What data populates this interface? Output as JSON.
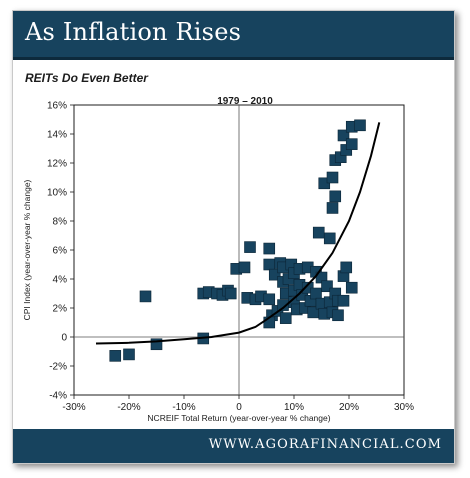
{
  "header": {
    "title": "As Inflation Rises"
  },
  "subtitle": "REITs Do Even Better",
  "footer": {
    "url": "WWW.AGORAFINANCIAL.COM"
  },
  "colors": {
    "header_bg": "#17435e",
    "marker": "#17435e",
    "curve": "#000000"
  },
  "chart_data": {
    "type": "scatter",
    "title": "1979 – 2010",
    "xlabel": "NCREIF Total Return (year-over-year % change)",
    "ylabel": "CPI Index (year-over-year % change)",
    "xlim": [
      -30,
      30
    ],
    "ylim": [
      -4,
      16
    ],
    "xticks": [
      -30,
      -20,
      -10,
      0,
      10,
      20,
      30
    ],
    "xtick_labels": [
      "-30%",
      "-20%",
      "-10%",
      "0",
      "10%",
      "20%",
      "30%"
    ],
    "yticks": [
      -4,
      -2,
      0,
      2,
      4,
      6,
      8,
      10,
      12,
      14,
      16
    ],
    "ytick_labels": [
      "-4%",
      "-2%",
      "0",
      "2%",
      "4%",
      "6%",
      "8%",
      "10%",
      "12%",
      "14%",
      "16%"
    ],
    "grid": false,
    "points": [
      {
        "x": -22.5,
        "y": -1.3
      },
      {
        "x": -20,
        "y": -1.2
      },
      {
        "x": -15,
        "y": -0.5
      },
      {
        "x": -17,
        "y": 2.8
      },
      {
        "x": -6.5,
        "y": -0.1
      },
      {
        "x": -6.5,
        "y": 3.0
      },
      {
        "x": -5.5,
        "y": 3.1
      },
      {
        "x": -4,
        "y": 3.0
      },
      {
        "x": -3,
        "y": 2.9
      },
      {
        "x": -2,
        "y": 3.2
      },
      {
        "x": -1.5,
        "y": 3.0
      },
      {
        "x": -0.5,
        "y": 4.7
      },
      {
        "x": 1,
        "y": 4.8
      },
      {
        "x": 2,
        "y": 6.2
      },
      {
        "x": 1.5,
        "y": 2.7
      },
      {
        "x": 3,
        "y": 2.6
      },
      {
        "x": 4,
        "y": 2.8
      },
      {
        "x": 5.5,
        "y": 6.1
      },
      {
        "x": 5.5,
        "y": 5.0
      },
      {
        "x": 6.5,
        "y": 4.3
      },
      {
        "x": 5.5,
        "y": 2.6
      },
      {
        "x": 6,
        "y": 1.5
      },
      {
        "x": 5.5,
        "y": 1.0
      },
      {
        "x": 7,
        "y": 1.8
      },
      {
        "x": 7.5,
        "y": 5.1
      },
      {
        "x": 8,
        "y": 4.8
      },
      {
        "x": 8,
        "y": 3.8
      },
      {
        "x": 8.5,
        "y": 3.0
      },
      {
        "x": 8,
        "y": 2.2
      },
      {
        "x": 8.5,
        "y": 1.3
      },
      {
        "x": 9,
        "y": 4.0
      },
      {
        "x": 9.5,
        "y": 5.0
      },
      {
        "x": 10,
        "y": 4.4
      },
      {
        "x": 10,
        "y": 3.2
      },
      {
        "x": 10,
        "y": 2.4
      },
      {
        "x": 10.5,
        "y": 1.9
      },
      {
        "x": 11,
        "y": 4.7
      },
      {
        "x": 11,
        "y": 3.6
      },
      {
        "x": 11.5,
        "y": 2.9
      },
      {
        "x": 12,
        "y": 2.0
      },
      {
        "x": 12.5,
        "y": 4.8
      },
      {
        "x": 12.5,
        "y": 3.4
      },
      {
        "x": 13,
        "y": 2.5
      },
      {
        "x": 13.5,
        "y": 1.7
      },
      {
        "x": 14,
        "y": 4.5
      },
      {
        "x": 14,
        "y": 3.0
      },
      {
        "x": 14.5,
        "y": 7.2
      },
      {
        "x": 15,
        "y": 4.1
      },
      {
        "x": 15,
        "y": 2.3
      },
      {
        "x": 15.5,
        "y": 1.6
      },
      {
        "x": 15.5,
        "y": 10.6
      },
      {
        "x": 16,
        "y": 3.5
      },
      {
        "x": 16.5,
        "y": 2.4
      },
      {
        "x": 16.5,
        "y": 6.8
      },
      {
        "x": 17,
        "y": 1.7
      },
      {
        "x": 17,
        "y": 11.0
      },
      {
        "x": 17,
        "y": 8.9
      },
      {
        "x": 17.5,
        "y": 9.7
      },
      {
        "x": 17.5,
        "y": 3.0
      },
      {
        "x": 17.5,
        "y": 12.2
      },
      {
        "x": 18,
        "y": 2.5
      },
      {
        "x": 18,
        "y": 1.5
      },
      {
        "x": 18.5,
        "y": 12.4
      },
      {
        "x": 19,
        "y": 4.2
      },
      {
        "x": 19,
        "y": 13.9
      },
      {
        "x": 19,
        "y": 2.5
      },
      {
        "x": 19.5,
        "y": 12.9
      },
      {
        "x": 19.5,
        "y": 4.8
      },
      {
        "x": 20.5,
        "y": 3.4
      },
      {
        "x": 20.5,
        "y": 14.5
      },
      {
        "x": 20.5,
        "y": 13.3
      },
      {
        "x": 22,
        "y": 14.6
      }
    ],
    "trend": {
      "x": [
        -26,
        -20,
        -15,
        -10,
        -5,
        0,
        3,
        5,
        8,
        11,
        14,
        17,
        20,
        22,
        24,
        25.5
      ],
      "y": [
        -0.45,
        -0.4,
        -0.3,
        -0.15,
        0.0,
        0.3,
        0.7,
        1.2,
        2.0,
        3.0,
        4.2,
        5.8,
        8.0,
        10.0,
        12.5,
        14.8
      ]
    }
  }
}
